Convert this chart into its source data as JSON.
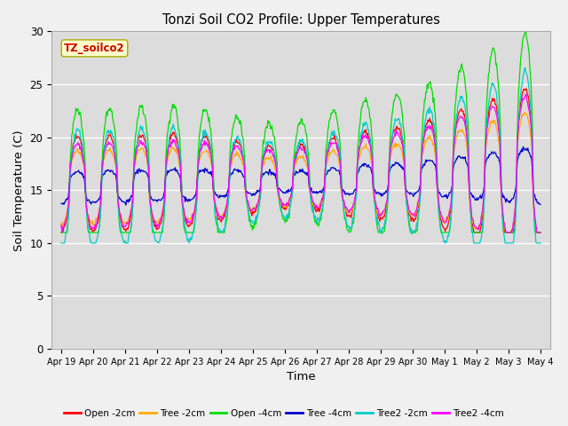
{
  "title": "Tonzi Soil CO2 Profile: Upper Temperatures",
  "xlabel": "Time",
  "ylabel": "Soil Temperature (C)",
  "ylim": [
    0,
    30
  ],
  "yticks": [
    0,
    5,
    10,
    15,
    20,
    25,
    30
  ],
  "plot_bg_color": "#dcdcdc",
  "fig_bg_color": "#f0f0f0",
  "legend_label": "TZ_soilco2",
  "legend_box_color": "#ffffcc",
  "legend_box_edge": "#aaaa00",
  "series": [
    {
      "label": "Open -2cm",
      "color": "#ff0000"
    },
    {
      "label": "Tree -2cm",
      "color": "#ffaa00"
    },
    {
      "label": "Open -4cm",
      "color": "#00dd00"
    },
    {
      "label": "Tree -4cm",
      "color": "#0000cc"
    },
    {
      "label": "Tree2 -2cm",
      "color": "#00cccc"
    },
    {
      "label": "Tree2 -4cm",
      "color": "#ff00ff"
    }
  ],
  "n_days": 15,
  "points_per_day": 48,
  "tick_labels": [
    "Apr 19",
    "Apr 20",
    "Apr 21",
    "Apr 22",
    "Apr 23",
    "Apr 24",
    "Apr 25",
    "Apr 26",
    "Apr 27",
    "Apr 28",
    "Apr 29",
    "Apr 30",
    "May 1",
    "May 2",
    "May 3",
    "May 4"
  ]
}
